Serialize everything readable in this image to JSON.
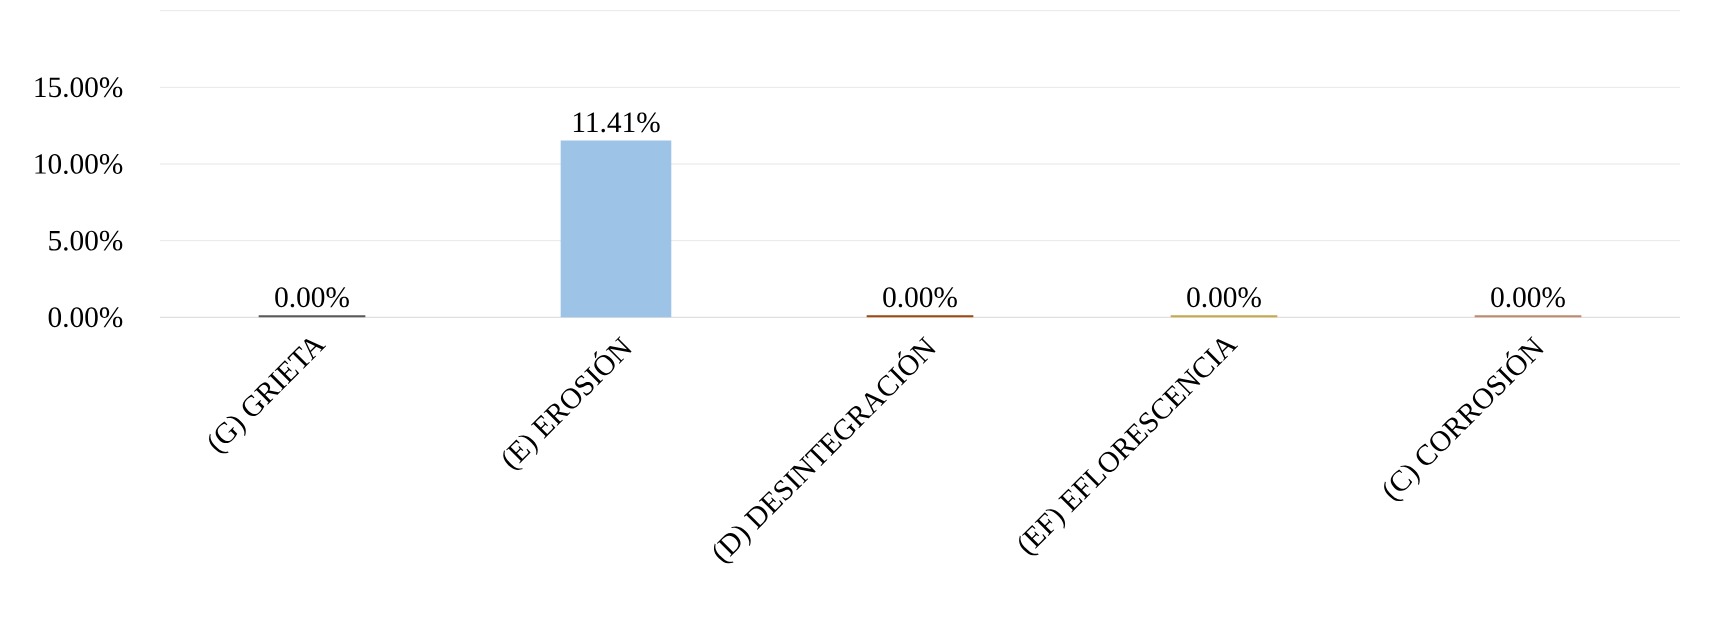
{
  "chart_data": {
    "type": "bar",
    "categories": [
      "(G) GRIETA",
      "(E) EROSIÓN",
      "(D) DESINTEGRACIÓN",
      "(EF) EFLORESCENCIA",
      "(C) CORROSIÓN"
    ],
    "values": [
      0,
      11.41,
      0,
      0,
      0
    ],
    "colors": [
      "#595959",
      "#9dc3e6",
      "#9e480e",
      "#c9a84a",
      "#c0896a"
    ],
    "value_labels": [
      "0.00%",
      "11.41%",
      "0.00%",
      "0.00%",
      "0.00%"
    ],
    "ylim": [
      0,
      20
    ],
    "yticks": [
      {
        "value": 0,
        "label": "0.00%"
      },
      {
        "value": 5,
        "label": "5.00%"
      },
      {
        "value": 10,
        "label": "10.00%"
      },
      {
        "value": 15,
        "label": "15.00%"
      },
      {
        "value": 20,
        "label": null
      }
    ],
    "grid": "y"
  }
}
